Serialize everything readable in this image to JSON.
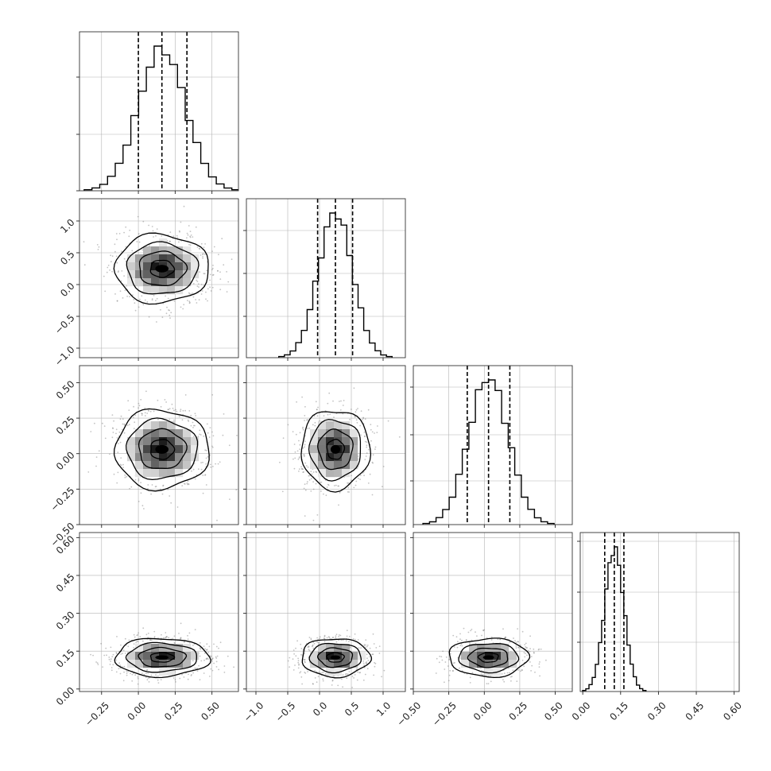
{
  "chart_data": {
    "type": "corner",
    "n_params": 4,
    "axes": [
      {
        "min": -0.4,
        "max": 0.68,
        "ticks": [
          -0.25,
          0.0,
          0.25,
          0.5
        ],
        "tick_labels": [
          "−0.25",
          "0.00",
          "0.25",
          "0.50"
        ],
        "mean": 0.16,
        "sd": 0.16,
        "quantiles": [
          0.0,
          0.16,
          0.33
        ]
      },
      {
        "min": -1.15,
        "max": 1.35,
        "ticks": [
          -1.0,
          -0.5,
          0.0,
          0.5,
          1.0
        ],
        "tick_labels": [
          "−1.0",
          "−0.5",
          "0.0",
          "0.5",
          "1.0"
        ],
        "mean": 0.25,
        "sd": 0.27,
        "quantiles": [
          -0.03,
          0.25,
          0.52
        ]
      },
      {
        "min": -0.5,
        "max": 0.62,
        "ticks": [
          -0.5,
          -0.25,
          0.0,
          0.25,
          0.5
        ],
        "tick_labels": [
          "−0.50",
          "−0.25",
          "0.00",
          "0.25",
          "0.50"
        ],
        "mean": 0.03,
        "sd": 0.14,
        "quantiles": [
          -0.12,
          0.03,
          0.18
        ]
      },
      {
        "min": -0.01,
        "max": 0.62,
        "ticks": [
          0.0,
          0.15,
          0.3,
          0.45,
          0.6
        ],
        "tick_labels": [
          "0.00",
          "0.15",
          "0.30",
          "0.45",
          "0.60"
        ],
        "mean": 0.125,
        "sd": 0.038,
        "quantiles": [
          0.087,
          0.125,
          0.163
        ]
      }
    ],
    "grid": true,
    "quantile_style": "dashed",
    "contour_levels_sigma": [
      0.5,
      1.0,
      1.5,
      2.0
    ],
    "colors": {
      "scatter": "#7a7a7a",
      "density": "#000000",
      "line": "#000000",
      "grid": "#b3b3b3"
    }
  }
}
